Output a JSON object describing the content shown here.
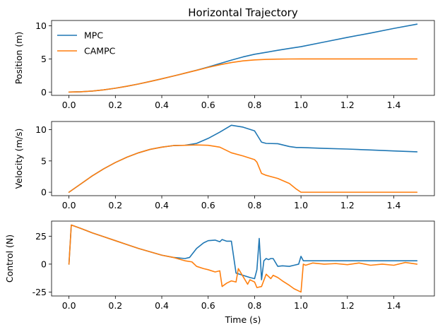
{
  "chart_data": [
    {
      "type": "line",
      "title": "Horizontal Trajectory",
      "xlabel": "",
      "ylabel": "Position (m)",
      "xlim": [
        -0.075,
        1.575
      ],
      "ylim": [
        -0.5,
        10.8
      ],
      "xticks": [
        "0.0",
        "0.2",
        "0.4",
        "0.6",
        "0.8",
        "1.0",
        "1.2",
        "1.4"
      ],
      "xtick_values": [
        0.0,
        0.2,
        0.4,
        0.6,
        0.8,
        1.0,
        1.2,
        1.4
      ],
      "yticks": [
        "0",
        "5",
        "10"
      ],
      "ytick_values": [
        0,
        5,
        10
      ],
      "legend": {
        "placement": "top-left",
        "entries": [
          "MPC",
          "CAMPC"
        ]
      },
      "series": [
        {
          "name": "MPC",
          "color": "#1f77b4",
          "x": [
            0.0,
            0.05,
            0.1,
            0.15,
            0.2,
            0.25,
            0.3,
            0.35,
            0.4,
            0.45,
            0.5,
            0.55,
            0.6,
            0.65,
            0.7,
            0.75,
            0.8,
            0.85,
            0.9,
            0.95,
            1.0,
            1.1,
            1.2,
            1.3,
            1.4,
            1.5
          ],
          "y": [
            0.0,
            0.04,
            0.15,
            0.33,
            0.58,
            0.88,
            1.22,
            1.6,
            2.0,
            2.42,
            2.85,
            3.3,
            3.78,
            4.3,
            4.82,
            5.3,
            5.7,
            6.0,
            6.3,
            6.58,
            6.85,
            7.55,
            8.25,
            8.9,
            9.6,
            10.25
          ]
        },
        {
          "name": "CAMPC",
          "color": "#ff7f0e",
          "x": [
            0.0,
            0.05,
            0.1,
            0.15,
            0.2,
            0.25,
            0.3,
            0.35,
            0.4,
            0.45,
            0.5,
            0.55,
            0.6,
            0.65,
            0.7,
            0.75,
            0.8,
            0.85,
            0.9,
            0.95,
            1.0,
            1.1,
            1.2,
            1.3,
            1.4,
            1.5
          ],
          "y": [
            0.0,
            0.04,
            0.15,
            0.33,
            0.58,
            0.88,
            1.22,
            1.6,
            2.0,
            2.42,
            2.85,
            3.28,
            3.72,
            4.12,
            4.45,
            4.7,
            4.85,
            4.93,
            4.97,
            4.99,
            5.0,
            5.0,
            5.0,
            5.0,
            5.0,
            5.0
          ]
        }
      ]
    },
    {
      "type": "line",
      "title": "",
      "xlabel": "",
      "ylabel": "Velocity (m/s)",
      "xlim": [
        -0.075,
        1.575
      ],
      "ylim": [
        -0.55,
        11.3
      ],
      "xticks": [
        "0.0",
        "0.2",
        "0.4",
        "0.6",
        "0.8",
        "1.0",
        "1.2",
        "1.4"
      ],
      "xtick_values": [
        0.0,
        0.2,
        0.4,
        0.6,
        0.8,
        1.0,
        1.2,
        1.4
      ],
      "yticks": [
        "0",
        "5",
        "10"
      ],
      "ytick_values": [
        0,
        5,
        10
      ],
      "series": [
        {
          "name": "MPC",
          "color": "#1f77b4",
          "x": [
            0.0,
            0.05,
            0.1,
            0.15,
            0.2,
            0.25,
            0.3,
            0.35,
            0.4,
            0.45,
            0.5,
            0.55,
            0.6,
            0.65,
            0.7,
            0.75,
            0.8,
            0.81,
            0.83,
            0.85,
            0.9,
            0.95,
            0.98,
            1.0,
            1.1,
            1.2,
            1.3,
            1.4,
            1.5
          ],
          "y": [
            0.0,
            1.3,
            2.6,
            3.75,
            4.75,
            5.6,
            6.3,
            6.85,
            7.2,
            7.45,
            7.5,
            7.8,
            8.6,
            9.6,
            10.7,
            10.4,
            9.8,
            9.2,
            8.0,
            7.8,
            7.75,
            7.3,
            7.15,
            7.15,
            7.0,
            6.9,
            6.75,
            6.6,
            6.45
          ]
        },
        {
          "name": "CAMPC",
          "color": "#ff7f0e",
          "x": [
            0.0,
            0.05,
            0.1,
            0.15,
            0.2,
            0.25,
            0.3,
            0.35,
            0.4,
            0.45,
            0.5,
            0.55,
            0.6,
            0.65,
            0.7,
            0.75,
            0.8,
            0.81,
            0.83,
            0.85,
            0.9,
            0.95,
            0.98,
            1.0,
            1.1,
            1.2,
            1.3,
            1.4,
            1.5
          ],
          "y": [
            0.0,
            1.3,
            2.6,
            3.75,
            4.75,
            5.6,
            6.3,
            6.85,
            7.2,
            7.45,
            7.5,
            7.55,
            7.5,
            7.2,
            6.3,
            5.8,
            5.2,
            4.8,
            3.0,
            2.7,
            2.2,
            1.4,
            0.5,
            0.0,
            0.0,
            0.0,
            0.0,
            0.0,
            0.0
          ]
        }
      ]
    },
    {
      "type": "line",
      "title": "",
      "xlabel": "Time (s)",
      "ylabel": "Control (N)",
      "xlim": [
        -0.075,
        1.575
      ],
      "ylim": [
        -28.5,
        38.5
      ],
      "xticks": [
        "0.0",
        "0.2",
        "0.4",
        "0.6",
        "0.8",
        "1.0",
        "1.2",
        "1.4"
      ],
      "xtick_values": [
        0.0,
        0.2,
        0.4,
        0.6,
        0.8,
        1.0,
        1.2,
        1.4
      ],
      "yticks": [
        "-25",
        "0",
        "25"
      ],
      "ytick_values": [
        -25,
        0,
        25
      ],
      "series": [
        {
          "name": "MPC",
          "color": "#1f77b4",
          "x": [
            0.0,
            0.01,
            0.05,
            0.1,
            0.15,
            0.2,
            0.25,
            0.3,
            0.35,
            0.4,
            0.45,
            0.5,
            0.52,
            0.55,
            0.58,
            0.6,
            0.63,
            0.65,
            0.66,
            0.68,
            0.7,
            0.72,
            0.75,
            0.78,
            0.8,
            0.81,
            0.82,
            0.83,
            0.84,
            0.85,
            0.86,
            0.87,
            0.88,
            0.9,
            0.92,
            0.95,
            0.97,
            0.99,
            1.0,
            1.01,
            1.1,
            1.2,
            1.3,
            1.4,
            1.5
          ],
          "y": [
            0.0,
            35.0,
            32.0,
            28.0,
            24.5,
            21.0,
            17.5,
            14.0,
            11.0,
            8.0,
            6.0,
            5.0,
            6.0,
            14.0,
            19.0,
            21.0,
            21.5,
            20.0,
            22.0,
            20.5,
            20.5,
            -8.0,
            -10.0,
            -12.0,
            -13.0,
            -5.0,
            23.0,
            -14.0,
            3.0,
            5.0,
            4.0,
            5.0,
            5.0,
            -2.0,
            -1.5,
            -2.0,
            -1.0,
            0.0,
            7.0,
            3.0,
            3.0,
            3.0,
            3.0,
            3.0,
            3.0
          ]
        },
        {
          "name": "CAMPC",
          "color": "#ff7f0e",
          "x": [
            0.0,
            0.01,
            0.05,
            0.1,
            0.15,
            0.2,
            0.25,
            0.3,
            0.35,
            0.4,
            0.45,
            0.5,
            0.53,
            0.55,
            0.58,
            0.6,
            0.63,
            0.65,
            0.66,
            0.68,
            0.7,
            0.72,
            0.73,
            0.75,
            0.77,
            0.78,
            0.8,
            0.81,
            0.83,
            0.85,
            0.87,
            0.88,
            0.9,
            0.92,
            0.95,
            0.97,
            1.0,
            1.01,
            1.02,
            1.05,
            1.1,
            1.15,
            1.2,
            1.25,
            1.3,
            1.35,
            1.4,
            1.45,
            1.5
          ],
          "y": [
            0.0,
            35.0,
            32.0,
            28.0,
            24.5,
            21.0,
            17.5,
            14.0,
            11.0,
            8.0,
            6.0,
            3.0,
            2.0,
            -2.0,
            -4.0,
            -5.0,
            -7.0,
            -6.0,
            -20.0,
            -17.0,
            -15.0,
            -16.0,
            -4.0,
            -11.0,
            -18.0,
            -14.0,
            -16.0,
            -21.0,
            -20.0,
            -9.0,
            -13.0,
            -10.0,
            -12.0,
            -15.0,
            -19.0,
            -22.0,
            -25.0,
            0.0,
            -1.0,
            1.0,
            0.0,
            0.5,
            -0.5,
            1.0,
            -1.0,
            0.0,
            -1.0,
            1.5,
            0.0
          ]
        }
      ]
    }
  ]
}
